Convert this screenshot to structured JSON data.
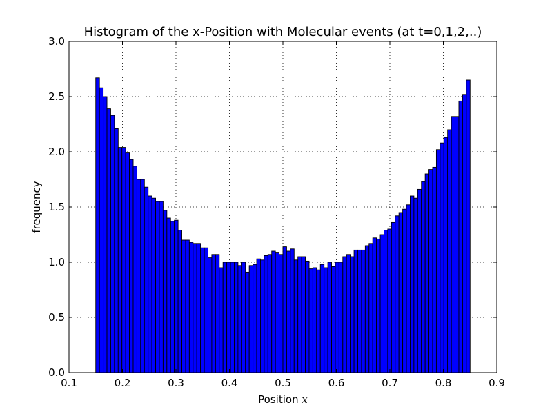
{
  "chart_data": {
    "type": "bar",
    "title": "Histogram of the x-Position with Molecular events (at t=0,1,2,..)",
    "xlabel": "Position ",
    "xlabel_math": "x",
    "ylabel": "frequency",
    "xlim": [
      0.1,
      0.9
    ],
    "ylim": [
      0.0,
      3.0
    ],
    "xticks": [
      "0.1",
      "0.2",
      "0.3",
      "0.4",
      "0.5",
      "0.6",
      "0.7",
      "0.8",
      "0.9"
    ],
    "yticks": [
      "0.0",
      "0.5",
      "1.0",
      "1.5",
      "2.0",
      "2.5",
      "3.0"
    ],
    "grid": true,
    "grid_style": "dotted",
    "bar_color": "#0000ff",
    "edge_color": "#000000",
    "bin_range": [
      0.15,
      0.85
    ],
    "values": [
      2.67,
      2.58,
      2.5,
      2.39,
      2.33,
      2.21,
      2.04,
      2.04,
      1.99,
      1.93,
      1.87,
      1.75,
      1.75,
      1.68,
      1.6,
      1.58,
      1.55,
      1.55,
      1.47,
      1.4,
      1.37,
      1.38,
      1.29,
      1.2,
      1.2,
      1.18,
      1.17,
      1.17,
      1.13,
      1.13,
      1.04,
      1.07,
      1.07,
      0.95,
      1.0,
      1.0,
      1.0,
      1.0,
      0.97,
      1.0,
      0.91,
      0.97,
      0.98,
      1.03,
      1.02,
      1.06,
      1.07,
      1.1,
      1.09,
      1.07,
      1.14,
      1.1,
      1.12,
      1.02,
      1.05,
      1.05,
      1.01,
      0.94,
      0.95,
      0.93,
      0.98,
      0.95,
      1.0,
      0.96,
      1.0,
      1.0,
      1.05,
      1.07,
      1.05,
      1.11,
      1.11,
      1.11,
      1.15,
      1.17,
      1.22,
      1.21,
      1.25,
      1.29,
      1.3,
      1.36,
      1.42,
      1.45,
      1.48,
      1.52,
      1.6,
      1.58,
      1.66,
      1.73,
      1.8,
      1.84,
      1.86,
      2.02,
      2.08,
      2.13,
      2.2,
      2.32,
      2.32,
      2.46,
      2.52,
      2.65
    ]
  }
}
